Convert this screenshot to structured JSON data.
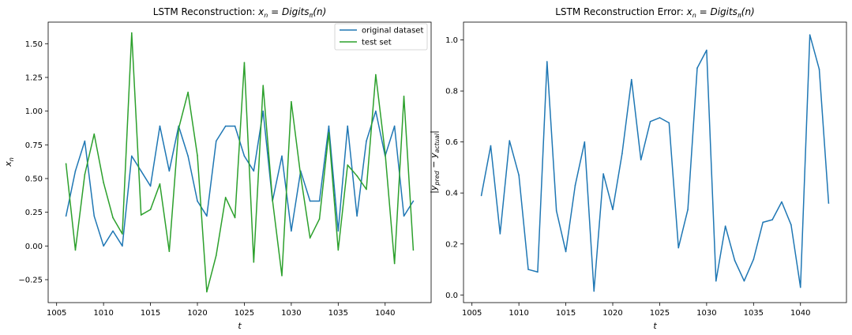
{
  "chart_data": [
    {
      "type": "line",
      "title": "LSTM Reconstruction: x_n = Digits_π(n)",
      "xlabel": "t",
      "ylabel": "x_n",
      "xlim": [
        1004.1,
        1044.9
      ],
      "ylim": [
        -0.42,
        1.66
      ],
      "xticks": [
        1005,
        1010,
        1015,
        1020,
        1025,
        1030,
        1035,
        1040
      ],
      "yticks": [
        -0.25,
        0.0,
        0.25,
        0.5,
        0.75,
        1.0,
        1.25,
        1.5
      ],
      "x_tick_labels": [
        "1005",
        "1010",
        "1015",
        "1020",
        "1025",
        "1030",
        "1035",
        "1040"
      ],
      "y_tick_labels": [
        "−0.25",
        "0.00",
        "0.25",
        "0.50",
        "0.75",
        "1.00",
        "1.25",
        "1.50"
      ],
      "grid": false,
      "legend": "top-right",
      "x": [
        1006,
        1007,
        1008,
        1009,
        1010,
        1011,
        1012,
        1013,
        1014,
        1015,
        1016,
        1017,
        1018,
        1019,
        1020,
        1021,
        1022,
        1023,
        1024,
        1025,
        1026,
        1027,
        1028,
        1029,
        1030,
        1031,
        1032,
        1033,
        1034,
        1035,
        1036,
        1037,
        1038,
        1039,
        1040,
        1041,
        1042,
        1043
      ],
      "series": [
        {
          "name": "original dataset",
          "color": "#1f77b4",
          "values": [
            0.222,
            0.556,
            0.778,
            0.222,
            0.0,
            0.111,
            0.0,
            0.667,
            0.556,
            0.444,
            0.889,
            0.556,
            0.889,
            0.667,
            0.333,
            0.222,
            0.778,
            0.889,
            0.889,
            0.667,
            0.556,
            1.0,
            0.333,
            0.667,
            0.111,
            0.556,
            0.333,
            0.333,
            0.889,
            0.111,
            0.889,
            0.222,
            0.778,
            1.0,
            0.667,
            0.889,
            0.222,
            0.333
          ]
        },
        {
          "name": "test set",
          "color": "#2ca02c",
          "values": [
            0.61,
            -0.03,
            0.53,
            0.83,
            0.47,
            0.21,
            0.09,
            1.58,
            0.23,
            0.27,
            0.46,
            -0.04,
            0.87,
            1.14,
            0.67,
            -0.34,
            -0.07,
            0.36,
            0.21,
            1.36,
            -0.12,
            1.19,
            0.34,
            -0.22,
            1.07,
            0.52,
            0.06,
            0.2,
            0.84,
            -0.03,
            0.6,
            0.52,
            0.42,
            1.27,
            0.69,
            -0.13,
            1.11,
            -0.03
          ]
        }
      ]
    },
    {
      "type": "line",
      "title": "LSTM Reconstruction Error: x_n = Digits_π(n)",
      "xlabel": "t",
      "ylabel": "|y_pred − y_actual|",
      "xlim": [
        1004.1,
        1044.9
      ],
      "ylim": [
        -0.03,
        1.07
      ],
      "xticks": [
        1005,
        1010,
        1015,
        1020,
        1025,
        1030,
        1035,
        1040
      ],
      "yticks": [
        0.0,
        0.2,
        0.4,
        0.6,
        0.8,
        1.0
      ],
      "x_tick_labels": [
        "1005",
        "1010",
        "1015",
        "1020",
        "1025",
        "1030",
        "1035",
        "1040"
      ],
      "y_tick_labels": [
        "0.0",
        "0.2",
        "0.4",
        "0.6",
        "0.8",
        "1.0"
      ],
      "grid": false,
      "x": [
        1006,
        1007,
        1008,
        1009,
        1010,
        1011,
        1012,
        1013,
        1014,
        1015,
        1016,
        1017,
        1018,
        1019,
        1020,
        1021,
        1022,
        1023,
        1024,
        1025,
        1026,
        1027,
        1028,
        1029,
        1030,
        1031,
        1032,
        1033,
        1034,
        1035,
        1036,
        1037,
        1038,
        1039,
        1040,
        1041,
        1042,
        1043
      ],
      "series": [
        {
          "color": "#1f77b4",
          "values": [
            0.39,
            0.585,
            0.24,
            0.605,
            0.47,
            0.1,
            0.09,
            0.915,
            0.33,
            0.17,
            0.43,
            0.6,
            0.015,
            0.475,
            0.335,
            0.555,
            0.845,
            0.53,
            0.68,
            0.695,
            0.675,
            0.185,
            0.335,
            0.89,
            0.96,
            0.055,
            0.27,
            0.135,
            0.055,
            0.14,
            0.285,
            0.295,
            0.365,
            0.275,
            0.03,
            1.02,
            0.885,
            0.36
          ]
        }
      ]
    }
  ]
}
